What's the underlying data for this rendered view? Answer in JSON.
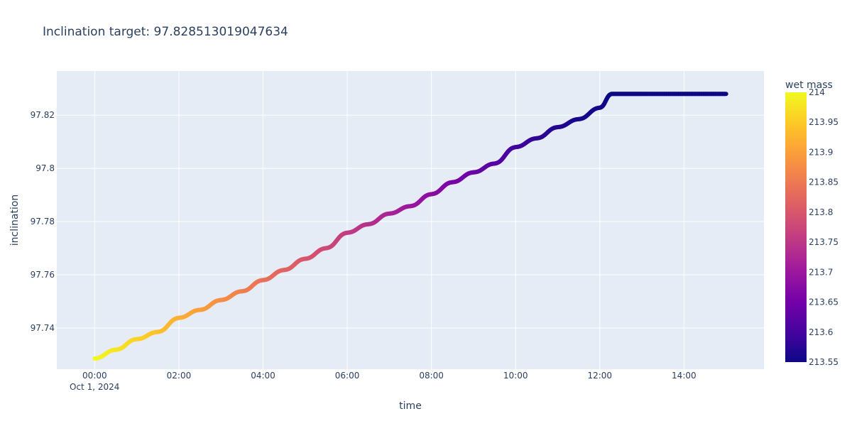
{
  "chart_data": {
    "type": "line",
    "title": "Inclination target: 97.828513019047634",
    "xlabel": "time",
    "ylabel": "inclination",
    "x_date_label": "Oct 1, 2024",
    "x_ticks": [
      "00:00",
      "02:00",
      "04:00",
      "06:00",
      "08:00",
      "10:00",
      "12:00",
      "14:00"
    ],
    "y_ticks": [
      "97.74",
      "97.76",
      "97.78",
      "97.8",
      "97.82"
    ],
    "xlim_hours": [
      -0.9,
      15.9
    ],
    "ylim": [
      97.7245,
      97.8366
    ],
    "colorbar": {
      "title": "wet mass",
      "range": [
        213.55,
        214.0
      ],
      "ticks": [
        "214",
        "213.95",
        "213.9",
        "213.85",
        "213.8",
        "213.75",
        "213.7",
        "213.65",
        "213.6",
        "213.55"
      ],
      "colorscale": [
        "#0d0887",
        "#46039f",
        "#7201a8",
        "#9c179e",
        "#bd3786",
        "#d8576b",
        "#ed7953",
        "#fb9f3a",
        "#fdca26",
        "#f0f921"
      ]
    },
    "series": [
      {
        "x": [
          "00:00",
          "00:30",
          "01:00",
          "01:30",
          "02:00",
          "02:30",
          "03:00",
          "03:30",
          "04:00",
          "04:30",
          "05:00",
          "05:30",
          "06:00",
          "06:30",
          "07:00",
          "07:30",
          "08:00",
          "08:30",
          "09:00",
          "09:30",
          "10:00",
          "10:30",
          "11:00",
          "11:30",
          "12:00",
          "12:17",
          "13:00",
          "14:00",
          "15:00"
        ],
        "y": [
          97.7285,
          97.7318,
          97.7358,
          97.7385,
          97.7438,
          97.7468,
          97.7505,
          97.7538,
          97.758,
          97.7618,
          97.766,
          97.77,
          97.7758,
          97.779,
          97.783,
          97.7858,
          97.7903,
          97.7948,
          97.7985,
          97.8018,
          97.808,
          97.8113,
          97.8155,
          97.8185,
          97.8228,
          97.828,
          97.828,
          97.828,
          97.828
        ],
        "color": [
          214.0,
          213.98,
          213.96,
          213.94,
          213.92,
          213.9,
          213.88,
          213.86,
          213.84,
          213.82,
          213.8,
          213.78,
          213.76,
          213.74,
          213.72,
          213.7,
          213.68,
          213.66,
          213.64,
          213.62,
          213.6,
          213.58,
          213.57,
          213.56,
          213.555,
          213.55,
          213.55,
          213.55,
          213.55
        ]
      }
    ]
  }
}
